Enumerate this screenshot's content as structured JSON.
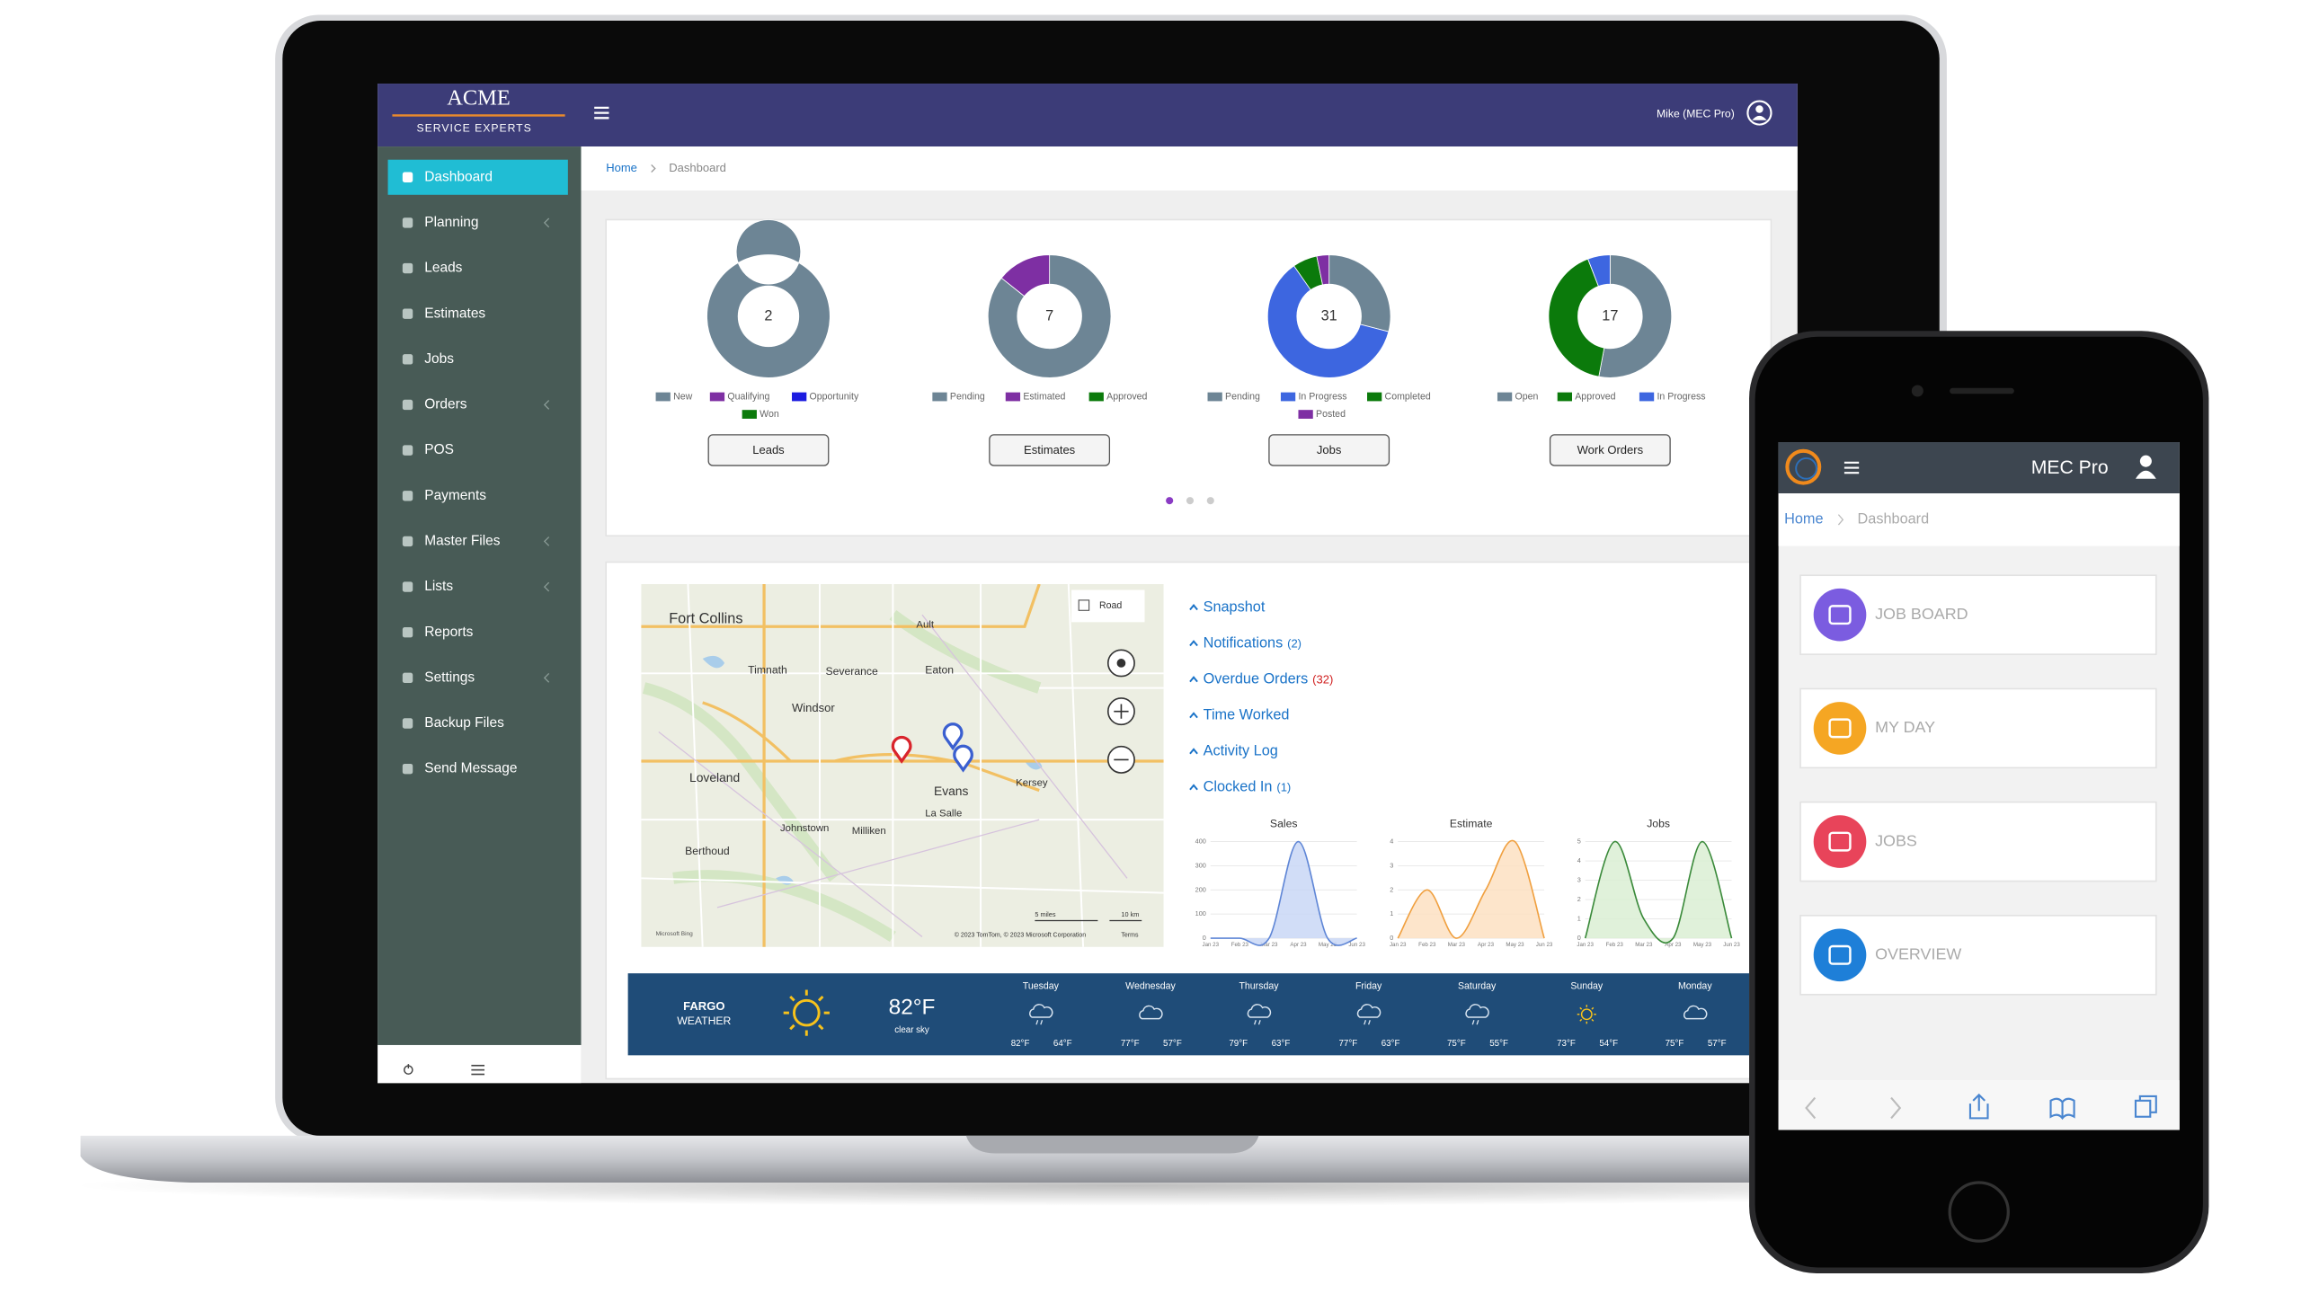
{
  "header": {
    "brand": "ACME",
    "tagline": "SERVICE EXPERTS",
    "user": "Mike (MEC Pro)"
  },
  "breadcrumb": [
    "Home",
    "Dashboard"
  ],
  "sidebar": [
    "Dashboard",
    "Planning",
    "Leads",
    "Estimates",
    "Jobs",
    "Orders",
    "POS",
    "Payments",
    "Master Files",
    "Lists",
    "Reports",
    "Settings",
    "Backup Files",
    "Send Message"
  ],
  "donuts": [
    {
      "total": 2,
      "button": "Leads",
      "segments": [
        {
          "name": "New",
          "color": "#6d8595",
          "value": 2
        },
        {
          "name": "Qualifying",
          "color": "#7e2fa3",
          "value": 0
        },
        {
          "name": "Opportunity",
          "color": "#1c1ce0",
          "value": 0
        },
        {
          "name": "Won",
          "color": "#0b7a0b",
          "value": 0
        }
      ]
    },
    {
      "total": 7,
      "button": "Estimates",
      "segments": [
        {
          "name": "Pending",
          "color": "#6d8595",
          "value": 6
        },
        {
          "name": "Estimated",
          "color": "#7e2fa3",
          "value": 1
        },
        {
          "name": "Approved",
          "color": "#0b7a0b",
          "value": 0
        }
      ]
    },
    {
      "total": 31,
      "button": "Jobs",
      "segments": [
        {
          "name": "Pending",
          "color": "#6d8595",
          "value": 9
        },
        {
          "name": "In Progress",
          "color": "#3d66e0",
          "value": 19
        },
        {
          "name": "Completed",
          "color": "#0b7a0b",
          "value": 2
        },
        {
          "name": "Posted",
          "color": "#7e2fa3",
          "value": 1
        }
      ]
    },
    {
      "total": 17,
      "button": "Work Orders",
      "segments": [
        {
          "name": "Open",
          "color": "#6d8595",
          "value": 9
        },
        {
          "name": "Approved",
          "color": "#0b7a0b",
          "value": 7
        },
        {
          "name": "In Progress",
          "color": "#3d66e0",
          "value": 1
        }
      ]
    }
  ],
  "map": {
    "places": [
      "Fort Collins",
      "Ault",
      "Timnath",
      "Severance",
      "Eaton",
      "Windsor",
      "Loveland",
      "Evans",
      "Kersey",
      "La Salle",
      "Johnstown",
      "Milliken",
      "Berthoud"
    ],
    "control": "Road",
    "scale": [
      "5 miles",
      "10 km"
    ],
    "attribution": "© 2023 TomTom, © 2023 Microsoft Corporation",
    "terms": "Terms",
    "provider": "Microsoft Bing"
  },
  "links": [
    {
      "label": "Snapshot"
    },
    {
      "label": "Notifications",
      "count": "(2)"
    },
    {
      "label": "Overdue Orders",
      "count": "(32)",
      "alert": true
    },
    {
      "label": "Time Worked"
    },
    {
      "label": "Activity Log"
    },
    {
      "label": "Clocked In",
      "count": "(1)"
    }
  ],
  "mini_charts": [
    {
      "type": "area",
      "title": "Sales",
      "color": "#5f86d6",
      "fill": "#c9d7f6",
      "categories": [
        "Jan 23",
        "Feb 23",
        "Mar 23",
        "Apr 23",
        "May 23",
        "Jun 23"
      ],
      "values": [
        0,
        0,
        0,
        400,
        0,
        0
      ],
      "ylim": [
        0,
        400
      ],
      "yticks": [
        0,
        100,
        200,
        300,
        400
      ]
    },
    {
      "type": "area",
      "title": "Estimate",
      "color": "#f0a040",
      "fill": "#fde1c2",
      "categories": [
        "Jan 23",
        "Feb 23",
        "Mar 23",
        "Apr 23",
        "May 23",
        "Jun 23"
      ],
      "values": [
        0,
        2,
        0,
        2,
        4,
        0
      ],
      "ylim": [
        0,
        4
      ],
      "yticks": [
        0,
        1,
        2,
        3,
        4
      ]
    },
    {
      "type": "area",
      "title": "Jobs",
      "color": "#3a8a3a",
      "fill": "#dbeed3",
      "categories": [
        "Jan 23",
        "Feb 23",
        "Mar 23",
        "Apr 23",
        "May 23",
        "Jun 23"
      ],
      "values": [
        0,
        5,
        1,
        0,
        5,
        0
      ],
      "ylim": [
        0,
        5
      ],
      "yticks": [
        0,
        1,
        2,
        3,
        4,
        5
      ]
    }
  ],
  "weather": {
    "city": "FARGO",
    "label": "WEATHER",
    "temp": "82°F",
    "condition": "clear sky",
    "forecast": [
      {
        "day": "Tuesday",
        "icon": "rain",
        "high": "82°F",
        "low": "64°F"
      },
      {
        "day": "Wednesday",
        "icon": "cloud",
        "high": "77°F",
        "low": "57°F"
      },
      {
        "day": "Thursday",
        "icon": "rain",
        "high": "79°F",
        "low": "63°F"
      },
      {
        "day": "Friday",
        "icon": "rain",
        "high": "77°F",
        "low": "63°F"
      },
      {
        "day": "Saturday",
        "icon": "rain",
        "high": "75°F",
        "low": "55°F"
      },
      {
        "day": "Sunday",
        "icon": "sun",
        "high": "73°F",
        "low": "54°F"
      },
      {
        "day": "Monday",
        "icon": "cloud",
        "high": "75°F",
        "low": "57°F"
      }
    ]
  },
  "phone": {
    "title": "MEC Pro",
    "breadcrumb": [
      "Home",
      "Dashboard"
    ],
    "tiles": [
      {
        "label": "JOB BOARD",
        "color": "#7b5ce0"
      },
      {
        "label": "MY DAY",
        "color": "#f5a623"
      },
      {
        "label": "JOBS",
        "color": "#e8445a"
      },
      {
        "label": "OVERVIEW",
        "color": "#1e7fd8"
      }
    ]
  }
}
